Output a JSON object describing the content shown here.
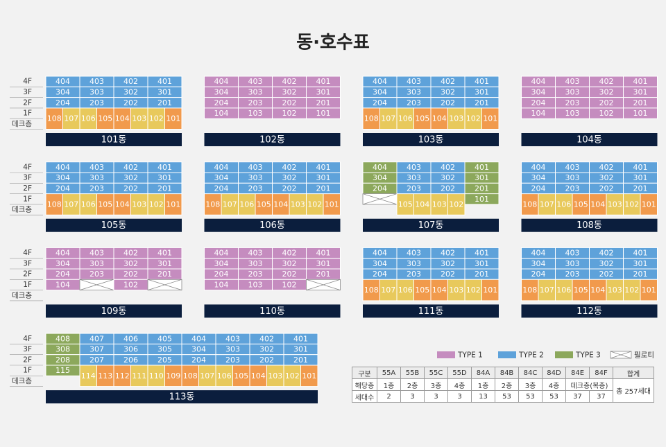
{
  "title": "동·호수표",
  "floor_labels": [
    "4F",
    "3F",
    "2F",
    "1F",
    "데크층"
  ],
  "buildings": [
    {
      "name": "101동",
      "rows": [
        {
          "color": "#5ea2da",
          "units": [
            "404",
            "403",
            "402",
            "401"
          ]
        },
        {
          "color": "#5ea2da",
          "units": [
            "304",
            "303",
            "302",
            "301"
          ]
        },
        {
          "color": "#5ea2da",
          "units": [
            "204",
            "203",
            "202",
            "201"
          ]
        }
      ],
      "low": [
        {
          "label": "108",
          "color": "#f19a4c"
        },
        {
          "label": "107",
          "color": "#e8c95c"
        },
        {
          "label": "106",
          "color": "#e8c95c"
        },
        {
          "label": "105",
          "color": "#f19a4c"
        },
        {
          "label": "104",
          "color": "#f19a4c"
        },
        {
          "label": "103",
          "color": "#e8c95c"
        },
        {
          "label": "102",
          "color": "#e8c95c"
        },
        {
          "label": "101",
          "color": "#f19a4c"
        }
      ]
    },
    {
      "name": "102동",
      "rows": [
        {
          "color": "#c58cbf",
          "units": [
            "404",
            "403",
            "402",
            "401"
          ]
        },
        {
          "color": "#c58cbf",
          "units": [
            "304",
            "303",
            "302",
            "301"
          ]
        },
        {
          "color": "#c58cbf",
          "units": [
            "204",
            "203",
            "202",
            "201"
          ]
        },
        {
          "color": "#c58cbf",
          "units": [
            "104",
            "103",
            "102",
            "101"
          ]
        }
      ]
    },
    {
      "name": "103동",
      "rows": [
        {
          "color": "#5ea2da",
          "units": [
            "404",
            "403",
            "402",
            "401"
          ]
        },
        {
          "color": "#5ea2da",
          "units": [
            "304",
            "303",
            "302",
            "301"
          ]
        },
        {
          "color": "#5ea2da",
          "units": [
            "204",
            "203",
            "202",
            "201"
          ]
        }
      ],
      "low": [
        {
          "label": "108",
          "color": "#f19a4c"
        },
        {
          "label": "107",
          "color": "#e8c95c"
        },
        {
          "label": "106",
          "color": "#e8c95c"
        },
        {
          "label": "105",
          "color": "#f19a4c"
        },
        {
          "label": "104",
          "color": "#f19a4c"
        },
        {
          "label": "103",
          "color": "#e8c95c"
        },
        {
          "label": "102",
          "color": "#e8c95c"
        },
        {
          "label": "101",
          "color": "#f19a4c"
        }
      ]
    },
    {
      "name": "104동",
      "rows": [
        {
          "color": "#c58cbf",
          "units": [
            "404",
            "403",
            "402",
            "401"
          ]
        },
        {
          "color": "#c58cbf",
          "units": [
            "304",
            "303",
            "302",
            "301"
          ]
        },
        {
          "color": "#c58cbf",
          "units": [
            "204",
            "203",
            "202",
            "201"
          ]
        },
        {
          "color": "#c58cbf",
          "units": [
            "104",
            "103",
            "102",
            "101"
          ]
        }
      ]
    },
    {
      "name": "105동",
      "rows": [
        {
          "color": "#5ea2da",
          "units": [
            "404",
            "403",
            "402",
            "401"
          ]
        },
        {
          "color": "#5ea2da",
          "units": [
            "304",
            "303",
            "302",
            "301"
          ]
        },
        {
          "color": "#5ea2da",
          "units": [
            "204",
            "203",
            "202",
            "201"
          ]
        }
      ],
      "low": [
        {
          "label": "108",
          "color": "#f19a4c"
        },
        {
          "label": "107",
          "color": "#e8c95c"
        },
        {
          "label": "106",
          "color": "#e8c95c"
        },
        {
          "label": "105",
          "color": "#f19a4c"
        },
        {
          "label": "104",
          "color": "#f19a4c"
        },
        {
          "label": "103",
          "color": "#e8c95c"
        },
        {
          "label": "102",
          "color": "#e8c95c"
        },
        {
          "label": "101",
          "color": "#f19a4c"
        }
      ]
    },
    {
      "name": "106동",
      "rows": [
        {
          "color": "#5ea2da",
          "units": [
            "404",
            "403",
            "402",
            "401"
          ]
        },
        {
          "color": "#5ea2da",
          "units": [
            "304",
            "303",
            "302",
            "301"
          ]
        },
        {
          "color": "#5ea2da",
          "units": [
            "204",
            "203",
            "202",
            "201"
          ]
        }
      ],
      "low": [
        {
          "label": "108",
          "color": "#f19a4c"
        },
        {
          "label": "107",
          "color": "#e8c95c"
        },
        {
          "label": "106",
          "color": "#e8c95c"
        },
        {
          "label": "105",
          "color": "#f19a4c"
        },
        {
          "label": "104",
          "color": "#f19a4c"
        },
        {
          "label": "103",
          "color": "#e8c95c"
        },
        {
          "label": "102",
          "color": "#e8c95c"
        },
        {
          "label": "101",
          "color": "#f19a4c"
        }
      ]
    },
    {
      "name": "107동",
      "rows": [
        {
          "color": "#5ea2da",
          "units": [
            {
              "label": "404",
              "color": "#8ca85c"
            },
            "403",
            "402",
            {
              "label": "401",
              "color": "#8ca85c"
            }
          ]
        },
        {
          "color": "#5ea2da",
          "units": [
            {
              "label": "304",
              "color": "#8ca85c"
            },
            "303",
            "302",
            {
              "label": "301",
              "color": "#8ca85c"
            }
          ]
        },
        {
          "color": "#5ea2da",
          "units": [
            {
              "label": "204",
              "color": "#8ca85c"
            },
            "203",
            "202",
            {
              "label": "201",
              "color": "#8ca85c"
            }
          ]
        },
        {
          "color": "#8ca85c",
          "units": [
            {
              "pilotis": true
            },
            null,
            null,
            "101"
          ]
        }
      ],
      "low": [
        null,
        null,
        {
          "label": "105",
          "color": "#e8c95c"
        },
        {
          "label": "104",
          "color": "#e8c95c"
        },
        {
          "label": "103",
          "color": "#e8c95c"
        },
        {
          "label": "102",
          "color": "#e8c95c"
        },
        null,
        null
      ]
    },
    {
      "name": "108동",
      "rows": [
        {
          "color": "#5ea2da",
          "units": [
            "404",
            "403",
            "402",
            "401"
          ]
        },
        {
          "color": "#5ea2da",
          "units": [
            "304",
            "303",
            "302",
            "301"
          ]
        },
        {
          "color": "#5ea2da",
          "units": [
            "204",
            "203",
            "202",
            "201"
          ]
        }
      ],
      "low": [
        {
          "label": "108",
          "color": "#f19a4c"
        },
        {
          "label": "107",
          "color": "#e8c95c"
        },
        {
          "label": "106",
          "color": "#e8c95c"
        },
        {
          "label": "105",
          "color": "#f19a4c"
        },
        {
          "label": "104",
          "color": "#f19a4c"
        },
        {
          "label": "103",
          "color": "#e8c95c"
        },
        {
          "label": "102",
          "color": "#e8c95c"
        },
        {
          "label": "101",
          "color": "#f19a4c"
        }
      ]
    },
    {
      "name": "109동",
      "rows": [
        {
          "color": "#c58cbf",
          "units": [
            "404",
            "403",
            "402",
            "401"
          ]
        },
        {
          "color": "#c58cbf",
          "units": [
            "304",
            "303",
            "302",
            "301"
          ]
        },
        {
          "color": "#c58cbf",
          "units": [
            "204",
            "203",
            "202",
            "201"
          ]
        },
        {
          "color": "#c58cbf",
          "units": [
            "104",
            {
              "pilotis": true
            },
            "102",
            {
              "pilotis": true
            }
          ]
        }
      ]
    },
    {
      "name": "110동",
      "rows": [
        {
          "color": "#c58cbf",
          "units": [
            "404",
            "403",
            "402",
            "401"
          ]
        },
        {
          "color": "#c58cbf",
          "units": [
            "304",
            "303",
            "302",
            "301"
          ]
        },
        {
          "color": "#c58cbf",
          "units": [
            "204",
            "203",
            "202",
            "201"
          ]
        },
        {
          "color": "#c58cbf",
          "units": [
            "104",
            "103",
            "102",
            {
              "pilotis": true
            }
          ]
        }
      ]
    },
    {
      "name": "111동",
      "rows": [
        {
          "color": "#5ea2da",
          "units": [
            "404",
            "403",
            "402",
            "401"
          ]
        },
        {
          "color": "#5ea2da",
          "units": [
            "304",
            "303",
            "302",
            "301"
          ]
        },
        {
          "color": "#5ea2da",
          "units": [
            "204",
            "203",
            "202",
            "201"
          ]
        }
      ],
      "low": [
        {
          "label": "108",
          "color": "#f19a4c"
        },
        {
          "label": "107",
          "color": "#e8c95c"
        },
        {
          "label": "106",
          "color": "#e8c95c"
        },
        {
          "label": "105",
          "color": "#f19a4c"
        },
        {
          "label": "104",
          "color": "#f19a4c"
        },
        {
          "label": "103",
          "color": "#e8c95c"
        },
        {
          "label": "102",
          "color": "#e8c95c"
        },
        {
          "label": "101",
          "color": "#f19a4c"
        }
      ]
    },
    {
      "name": "112동",
      "rows": [
        {
          "color": "#5ea2da",
          "units": [
            "404",
            "403",
            "402",
            "401"
          ]
        },
        {
          "color": "#5ea2da",
          "units": [
            "304",
            "303",
            "302",
            "301"
          ]
        },
        {
          "color": "#5ea2da",
          "units": [
            "204",
            "203",
            "202",
            "201"
          ]
        }
      ],
      "low": [
        {
          "label": "108",
          "color": "#f19a4c"
        },
        {
          "label": "107",
          "color": "#e8c95c"
        },
        {
          "label": "106",
          "color": "#e8c95c"
        },
        {
          "label": "105",
          "color": "#f19a4c"
        },
        {
          "label": "104",
          "color": "#f19a4c"
        },
        {
          "label": "103",
          "color": "#e8c95c"
        },
        {
          "label": "102",
          "color": "#e8c95c"
        },
        {
          "label": "101",
          "color": "#f19a4c"
        }
      ]
    },
    {
      "name": "113동",
      "rows": [
        {
          "color": "#5ea2da",
          "units": [
            {
              "label": "408",
              "color": "#8ca85c"
            },
            "407",
            "406",
            "405",
            "404",
            "403",
            "402",
            "401"
          ]
        },
        {
          "color": "#5ea2da",
          "units": [
            {
              "label": "308",
              "color": "#8ca85c"
            },
            "307",
            "306",
            "305",
            "304",
            "303",
            "302",
            "301"
          ]
        },
        {
          "color": "#5ea2da",
          "units": [
            {
              "label": "208",
              "color": "#8ca85c"
            },
            "207",
            "206",
            "205",
            "204",
            "203",
            "202",
            "201"
          ]
        },
        {
          "color": "#8ca85c",
          "units": [
            "115",
            null,
            null,
            null,
            null,
            null,
            null,
            null
          ]
        }
      ],
      "low": [
        null,
        null,
        {
          "label": "114",
          "color": "#e8c95c"
        },
        {
          "label": "113",
          "color": "#f19a4c"
        },
        {
          "label": "112",
          "color": "#f19a4c"
        },
        {
          "label": "111",
          "color": "#e8c95c"
        },
        {
          "label": "110",
          "color": "#e8c95c"
        },
        {
          "label": "109",
          "color": "#f19a4c"
        },
        {
          "label": "108",
          "color": "#f19a4c"
        },
        {
          "label": "107",
          "color": "#e8c95c"
        },
        {
          "label": "106",
          "color": "#e8c95c"
        },
        {
          "label": "105",
          "color": "#f19a4c"
        },
        {
          "label": "104",
          "color": "#f19a4c"
        },
        {
          "label": "103",
          "color": "#e8c95c"
        },
        {
          "label": "102",
          "color": "#e8c95c"
        },
        {
          "label": "101",
          "color": "#f19a4c"
        }
      ]
    }
  ],
  "legend": [
    {
      "name": "TYPE 1",
      "color": "#c58cbf"
    },
    {
      "name": "TYPE 2",
      "color": "#5ea2da"
    },
    {
      "name": "TYPE 3",
      "color": "#8ca85c"
    },
    {
      "name": "필로티",
      "pilotis": true
    }
  ],
  "table": {
    "header": [
      "구분",
      "55A",
      "55B",
      "55C",
      "55D",
      "84A",
      "84B",
      "84C",
      "84D",
      "84E",
      "84F",
      "합계"
    ],
    "floor_row": [
      "해당층",
      "1층",
      "2층",
      "3층",
      "4층",
      "1층",
      "2층",
      "3층",
      "4층",
      "데크층(복층)"
    ],
    "total": "총 257세대",
    "count_row": [
      "세대수",
      2,
      3,
      3,
      3,
      13,
      53,
      53,
      53,
      37,
      37
    ]
  }
}
